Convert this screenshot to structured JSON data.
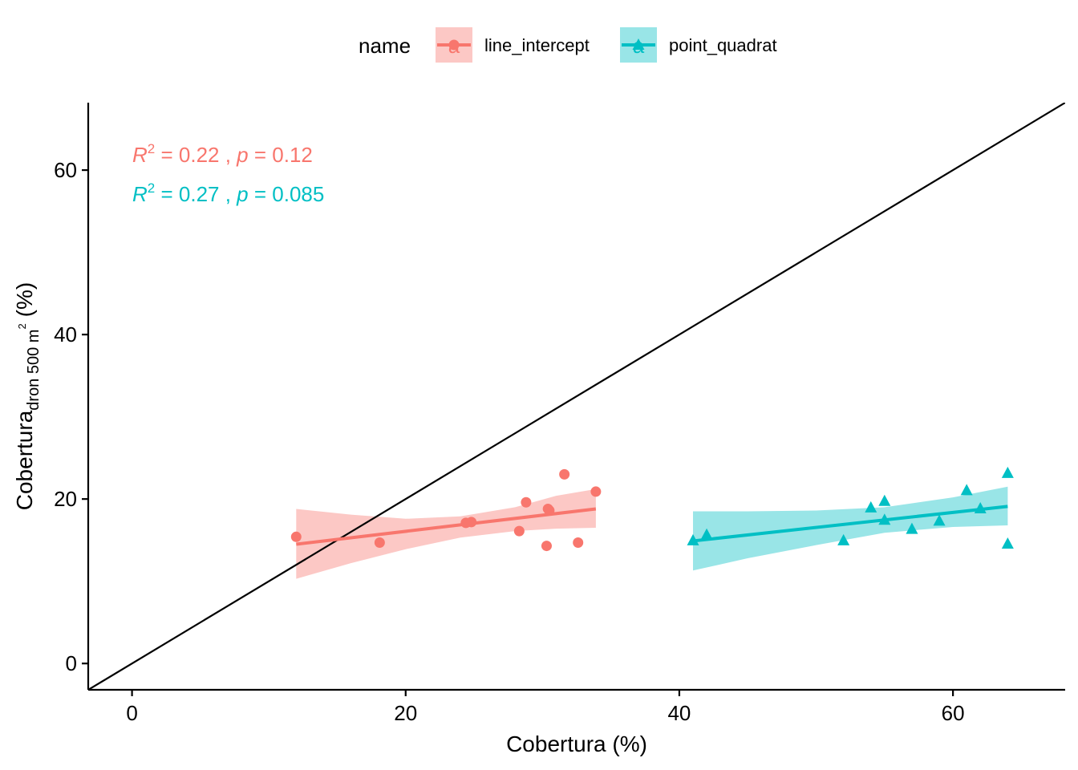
{
  "chart_data": {
    "type": "scatter",
    "xlabel": "Cobertura (%)",
    "ylabel": {
      "main": "Cobertura",
      "subscript": "dron 500 m",
      "superscript": "2",
      "suffix": "(%)"
    },
    "xlim": [
      -3.2,
      68.2
    ],
    "ylim": [
      -3.2,
      68.2
    ],
    "x_ticks": [
      0,
      20,
      40,
      60
    ],
    "y_ticks": [
      0,
      20,
      40,
      60
    ],
    "grid": false,
    "legend": {
      "position": "top",
      "title": "name",
      "key_glyph_text": "a"
    },
    "reference_line": {
      "type": "identity",
      "slope": 1,
      "intercept": 0,
      "color": "#000000"
    },
    "series": [
      {
        "name": "line_intercept",
        "color": "#F8766D",
        "marker": "circle",
        "points": [
          [
            12,
            15.4
          ],
          [
            18.1,
            14.7
          ],
          [
            24.4,
            17.1
          ],
          [
            24.8,
            17.2
          ],
          [
            28.3,
            16.1
          ],
          [
            28.8,
            19.6
          ],
          [
            30.3,
            14.3
          ],
          [
            30.4,
            18.8
          ],
          [
            30.5,
            18.6
          ],
          [
            31.6,
            23.0
          ],
          [
            32.6,
            14.7
          ],
          [
            33.9,
            20.9
          ]
        ],
        "fit": {
          "x": [
            12,
            33.9
          ],
          "y": [
            14.5,
            18.8
          ]
        },
        "ribbon": {
          "x": [
            12,
            16,
            20,
            24,
            28,
            31,
            33.9
          ],
          "upper": [
            18.8,
            18.1,
            17.6,
            17.9,
            19.0,
            20.4,
            21.2
          ],
          "lower": [
            10.3,
            12.2,
            13.9,
            15.3,
            16.1,
            16.4,
            16.5
          ]
        },
        "annotation": {
          "r2": "0.22",
          "p": "0.12"
        }
      },
      {
        "name": "point_quadrat",
        "color": "#00BFC4",
        "marker": "triangle",
        "points": [
          [
            41,
            14.9
          ],
          [
            42,
            15.6
          ],
          [
            52,
            14.9
          ],
          [
            54,
            18.9
          ],
          [
            55,
            19.7
          ],
          [
            55,
            17.4
          ],
          [
            57,
            16.3
          ],
          [
            59,
            17.3
          ],
          [
            61,
            21.0
          ],
          [
            62,
            18.8
          ],
          [
            64,
            23.1
          ],
          [
            64,
            14.5
          ]
        ],
        "fit": {
          "x": [
            41,
            64
          ],
          "y": [
            14.9,
            19.1
          ]
        },
        "ribbon": {
          "x": [
            41,
            45,
            50,
            55,
            60,
            64
          ],
          "upper": [
            18.5,
            18.5,
            18.6,
            19.0,
            20.2,
            21.5
          ],
          "lower": [
            11.3,
            12.8,
            14.4,
            15.9,
            16.6,
            16.8
          ]
        },
        "annotation": {
          "r2": "0.27",
          "p": "0.085"
        }
      }
    ]
  }
}
